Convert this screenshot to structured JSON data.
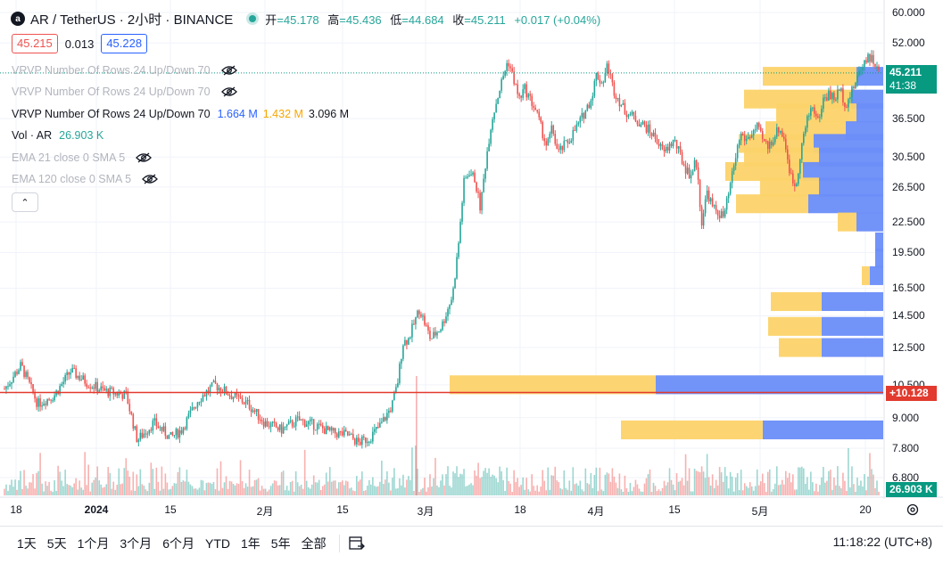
{
  "header": {
    "symbol": "AR / TetherUS · 2小时 · BINANCE",
    "ohlc": [
      {
        "label": "开",
        "value": "=45.178"
      },
      {
        "label": "高",
        "value": "=45.436"
      },
      {
        "label": "低",
        "value": "=44.684"
      },
      {
        "label": "收",
        "value": "=45.211"
      }
    ],
    "change": "+0.017 (+0.04%)",
    "bid": "45.215",
    "spread": "0.013",
    "ask": "45.228"
  },
  "legends": [
    {
      "text": "VRVP Number Of Rows 24 Up/Down 70",
      "dim": true,
      "eye": true
    },
    {
      "text": "VRVP Number Of Rows 24 Up/Down 70",
      "dim": true,
      "eye": true
    },
    {
      "text": "VRVP Number Of Rows 24 Up/Down 70",
      "dim": false,
      "vals": [
        "1.664 M",
        "1.432 M",
        "3.096 M"
      ]
    },
    {
      "text": "Vol · AR",
      "dim": false,
      "vals": [
        "26.903 K"
      ]
    },
    {
      "text": "EMA 21 close 0 SMA 5",
      "dim": true,
      "eye": true
    },
    {
      "text": "EMA 120 close 0 SMA 5",
      "dim": true,
      "eye": true
    }
  ],
  "collapse_glyph": "⌃",
  "chart_data": {
    "type": "candlestick",
    "scale": "log",
    "y_ticks": [
      "60.000",
      "52.000",
      "45.211",
      "36.500",
      "30.500",
      "26.500",
      "22.500",
      "19.500",
      "16.500",
      "14.500",
      "12.500",
      "10.500",
      "9.000",
      "7.800",
      "6.800"
    ],
    "y_tick_values": [
      60,
      52,
      36.5,
      30.5,
      26.5,
      22.5,
      19.5,
      16.5,
      14.5,
      12.5,
      10.5,
      9,
      7.8,
      6.8
    ],
    "x_ticks": [
      "18",
      "2024",
      "15",
      "2月",
      "15",
      "3月",
      "18",
      "4月",
      "15",
      "5月",
      "20"
    ],
    "last_price": 45.211,
    "last_price_label": "45.211",
    "countdown": "41:38",
    "horizontal_line_value": 10.128,
    "horizontal_line_label": "+10.128",
    "volume_label": "26.903 K",
    "price_path": [
      [
        0,
        10.3
      ],
      [
        3,
        11.5
      ],
      [
        6,
        9.6
      ],
      [
        9,
        10.0
      ],
      [
        12,
        11.2
      ],
      [
        15,
        10.6
      ],
      [
        18,
        10.2
      ],
      [
        22,
        10.0
      ],
      [
        24,
        8.1
      ],
      [
        27,
        8.8
      ],
      [
        30,
        8.2
      ],
      [
        32,
        8.5
      ],
      [
        35,
        9.8
      ],
      [
        38,
        10.5
      ],
      [
        41,
        10.0
      ],
      [
        44,
        9.6
      ],
      [
        47,
        8.8
      ],
      [
        50,
        8.5
      ],
      [
        53,
        8.9
      ],
      [
        56,
        8.7
      ],
      [
        59,
        8.4
      ],
      [
        62,
        8.3
      ],
      [
        64,
        8.0
      ],
      [
        66,
        8.2
      ],
      [
        68,
        8.7
      ],
      [
        70,
        9.5
      ],
      [
        71,
        10.5
      ],
      [
        72,
        12.8
      ],
      [
        73,
        13.0
      ],
      [
        75,
        15.0
      ],
      [
        77,
        13.0
      ],
      [
        79,
        13.8
      ],
      [
        81,
        16.0
      ],
      [
        82,
        20.0
      ],
      [
        83,
        27.0
      ],
      [
        84,
        28.5
      ],
      [
        85,
        27.5
      ],
      [
        86,
        24.0
      ],
      [
        87,
        30.0
      ],
      [
        88,
        36.0
      ],
      [
        89,
        40.0
      ],
      [
        90,
        44.0
      ],
      [
        91,
        48.0
      ],
      [
        92,
        44.0
      ],
      [
        93,
        40.0
      ],
      [
        94,
        42.0
      ],
      [
        96,
        38.0
      ],
      [
        98,
        32.0
      ],
      [
        99,
        35.0
      ],
      [
        100,
        31.0
      ],
      [
        102,
        33.0
      ],
      [
        104,
        36.0
      ],
      [
        106,
        40.0
      ],
      [
        107,
        45.0
      ],
      [
        108,
        43.0
      ],
      [
        109,
        47.0
      ],
      [
        110,
        42.0
      ],
      [
        112,
        38.0
      ],
      [
        114,
        36.5
      ],
      [
        116,
        35.0
      ],
      [
        118,
        33.0
      ],
      [
        119,
        31.0
      ],
      [
        121,
        33.0
      ],
      [
        123,
        29.0
      ],
      [
        124,
        28.0
      ],
      [
        125,
        30.0
      ],
      [
        126,
        22.5
      ],
      [
        127,
        26.0
      ],
      [
        128,
        24.0
      ],
      [
        130,
        23.0
      ],
      [
        131,
        26.0
      ],
      [
        132,
        30.0
      ],
      [
        133,
        34.0
      ],
      [
        134,
        33.0
      ],
      [
        136,
        35.0
      ],
      [
        137,
        33.0
      ],
      [
        138,
        32.0
      ],
      [
        140,
        35.0
      ],
      [
        141,
        33.0
      ],
      [
        142,
        28.0
      ],
      [
        143,
        26.5
      ],
      [
        144,
        32.0
      ],
      [
        145,
        36.0
      ],
      [
        146,
        39.0
      ],
      [
        147,
        36.0
      ],
      [
        148,
        40.0
      ],
      [
        149,
        41.0
      ],
      [
        150,
        40.0
      ],
      [
        151,
        42.0
      ],
      [
        152,
        39.0
      ],
      [
        153,
        41.0
      ],
      [
        154,
        44.0
      ],
      [
        155,
        47.0
      ],
      [
        156,
        49.0
      ],
      [
        157,
        48.0
      ],
      [
        158,
        45.2
      ]
    ],
    "volume_profile": [
      {
        "price": 44.5,
        "up": 0.35,
        "down": 0.1
      },
      {
        "price": 40.0,
        "up": 0.4,
        "down": 0.12
      },
      {
        "price": 37.5,
        "up": 0.3,
        "down": 0.1
      },
      {
        "price": 34.5,
        "up": 0.3,
        "down": 0.14
      },
      {
        "price": 32.5,
        "up": 0.28,
        "down": 0.26
      },
      {
        "price": 30.5,
        "up": 0.28,
        "down": 0.24
      },
      {
        "price": 28.5,
        "up": 0.29,
        "down": 0.3
      },
      {
        "price": 26.5,
        "up": 0.22,
        "down": 0.24
      },
      {
        "price": 24.5,
        "up": 0.27,
        "down": 0.28
      },
      {
        "price": 22.5,
        "up": 0.07,
        "down": 0.1
      },
      {
        "price": 20.5,
        "up": 0.0,
        "down": 0.03
      },
      {
        "price": 19.0,
        "up": 0.0,
        "down": 0.03
      },
      {
        "price": 17.5,
        "up": 0.03,
        "down": 0.05
      },
      {
        "price": 15.5,
        "up": 0.19,
        "down": 0.23
      },
      {
        "price": 13.8,
        "up": 0.2,
        "down": 0.23
      },
      {
        "price": 12.5,
        "up": 0.16,
        "down": 0.23
      },
      {
        "price": 10.5,
        "up": 0.77,
        "down": 0.85
      },
      {
        "price": 8.5,
        "up": 0.53,
        "down": 0.45
      }
    ],
    "colors": {
      "up": "#26a69a",
      "down": "#ef5350",
      "vp_up": "#6a8df8",
      "vp_down": "#fcd36a",
      "hline": "#e23a2e",
      "price_tag": "#089981"
    }
  },
  "toolbar": {
    "ranges": [
      "1天",
      "5天",
      "1个月",
      "3个月",
      "6个月",
      "YTD",
      "1年",
      "5年",
      "全部"
    ],
    "clock": "11:18:22 (UTC+8)"
  }
}
